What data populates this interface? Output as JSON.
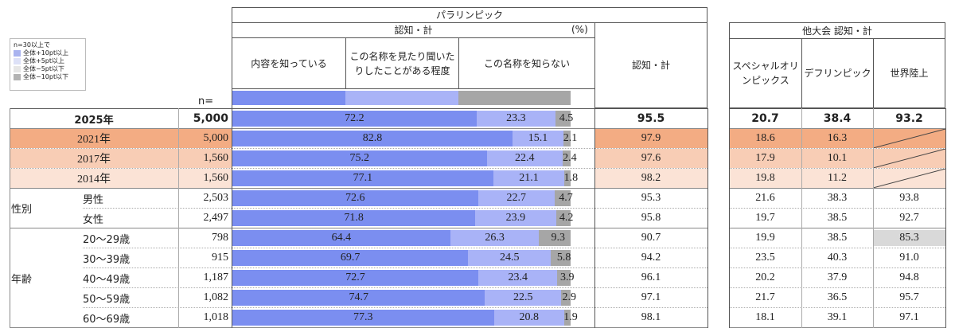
{
  "header": {
    "paralympic": "パラリンピック",
    "ninchi_kei": "認知・計",
    "percent": "(%)",
    "col_know": "内容を知っている",
    "col_heard": "この名称を見たり聞いたりしたことがある程度",
    "col_unknown": "この名称を知らない",
    "col_total": "認知・計",
    "other": "他大会  認知・計",
    "col_special": "スペシャルオリンピックス",
    "col_deaf": "デフリンピック",
    "col_world": "世界陸上",
    "n_label": "n="
  },
  "legend": {
    "title": "n=30以上で",
    "items": [
      {
        "label": "全体+10pt以上",
        "color": "#a9b3ef"
      },
      {
        "label": "全体+5pt以上",
        "color": "#dde1f7"
      },
      {
        "label": "全体−5pt以下",
        "color": "#e6e6e6"
      },
      {
        "label": "全体−10pt以下",
        "color": "#b3b3b3"
      }
    ]
  },
  "groups": {
    "gender": "性別",
    "age": "年齢"
  },
  "colors": {
    "know": "#7b8ef0",
    "heard": "#a9b3f7",
    "unknown": "#a6a6a6",
    "r2021": "#f3ac83",
    "r2017": "#f8cdb5",
    "r2014": "#fbe3d6",
    "hl_low": "#d9d9d9"
  },
  "chart_data": {
    "type": "bar",
    "stacked": true,
    "xlim": [
      0,
      100
    ],
    "series_names": [
      "内容を知っている",
      "この名称を見たり聞いたりしたことがある程度",
      "この名称を知らない"
    ],
    "rows": [
      {
        "label": "2025年",
        "n": "5,000",
        "know": 72.2,
        "heard": 23.3,
        "unknown": 4.5,
        "total": "95.5",
        "special": "20.7",
        "deaf": "38.4",
        "world": "93.2"
      },
      {
        "label": "2021年",
        "n": "5,000",
        "know": 82.8,
        "heard": 15.1,
        "unknown": 2.1,
        "total": "97.9",
        "special": "18.6",
        "deaf": "16.3",
        "world": ""
      },
      {
        "label": "2017年",
        "n": "1,560",
        "know": 75.2,
        "heard": 22.4,
        "unknown": 2.4,
        "total": "97.6",
        "special": "17.9",
        "deaf": "10.1",
        "world": ""
      },
      {
        "label": "2014年",
        "n": "1,560",
        "know": 77.1,
        "heard": 21.1,
        "unknown": 1.8,
        "total": "98.2",
        "special": "19.8",
        "deaf": "11.2",
        "world": ""
      },
      {
        "label": "男性",
        "n": "2,503",
        "know": 72.6,
        "heard": 22.7,
        "unknown": 4.7,
        "total": "95.3",
        "special": "21.6",
        "deaf": "38.3",
        "world": "93.8"
      },
      {
        "label": "女性",
        "n": "2,497",
        "know": 71.8,
        "heard": 23.9,
        "unknown": 4.2,
        "total": "95.8",
        "special": "19.7",
        "deaf": "38.5",
        "world": "92.7"
      },
      {
        "label": "20～29歳",
        "n": "798",
        "know": 64.4,
        "heard": 26.3,
        "unknown": 9.3,
        "total": "90.7",
        "special": "19.9",
        "deaf": "38.5",
        "world": "85.3"
      },
      {
        "label": "30～39歳",
        "n": "915",
        "know": 69.7,
        "heard": 24.5,
        "unknown": 5.8,
        "total": "94.2",
        "special": "23.5",
        "deaf": "40.3",
        "world": "91.0"
      },
      {
        "label": "40～49歳",
        "n": "1,187",
        "know": 72.7,
        "heard": 23.4,
        "unknown": 3.9,
        "total": "96.1",
        "special": "20.2",
        "deaf": "37.9",
        "world": "94.8"
      },
      {
        "label": "50～59歳",
        "n": "1,082",
        "know": 74.7,
        "heard": 22.5,
        "unknown": 2.9,
        "total": "97.1",
        "special": "21.7",
        "deaf": "36.5",
        "world": "95.7"
      },
      {
        "label": "60～69歳",
        "n": "1,018",
        "know": 77.3,
        "heard": 20.8,
        "unknown": 1.9,
        "total": "98.1",
        "special": "18.1",
        "deaf": "39.1",
        "world": "97.1"
      }
    ]
  }
}
